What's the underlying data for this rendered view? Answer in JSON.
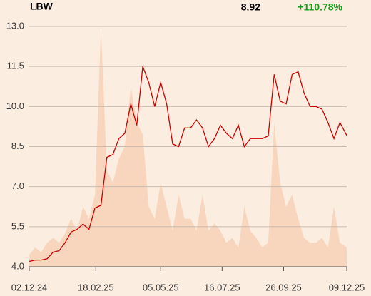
{
  "header": {
    "symbol": "LBW",
    "price": "8.92",
    "change": "+110.78%"
  },
  "chart_data": {
    "type": "line",
    "x": [
      "02.12.24",
      "09.12.24",
      "16.12.24",
      "23.12.24",
      "30.12.24",
      "06.01.25",
      "13.01.25",
      "20.01.25",
      "27.01.25",
      "03.02.25",
      "10.02.25",
      "17.02.25",
      "24.02.25",
      "03.03.25",
      "10.03.25",
      "17.03.25",
      "24.03.25",
      "31.03.25",
      "07.04.25",
      "14.04.25",
      "21.04.25",
      "28.04.25",
      "05.05.25",
      "12.05.25",
      "19.05.25",
      "26.05.25",
      "02.06.25",
      "09.06.25",
      "16.06.25",
      "23.06.25",
      "30.06.25",
      "07.07.25",
      "14.07.25",
      "21.07.25",
      "28.07.25",
      "04.08.25",
      "11.08.25",
      "18.08.25",
      "25.08.25",
      "01.09.25",
      "08.09.25",
      "15.09.25",
      "22.09.25",
      "29.09.25",
      "06.10.25",
      "13.10.25",
      "20.10.25",
      "27.10.25",
      "03.11.25",
      "10.11.25",
      "17.11.25",
      "24.11.25",
      "01.12.25",
      "09.12.25"
    ],
    "series": [
      {
        "color": "#cc0000",
        "values": [
          4.2,
          4.25,
          4.25,
          4.3,
          4.55,
          4.6,
          4.9,
          5.3,
          5.4,
          5.6,
          5.4,
          6.2,
          6.3,
          8.1,
          8.2,
          8.8,
          9.0,
          10.1,
          9.3,
          11.5,
          10.9,
          10.0,
          10.9,
          10.1,
          8.6,
          8.5,
          9.2,
          9.2,
          9.5,
          9.2,
          8.5,
          8.8,
          9.3,
          9.0,
          8.8,
          9.3,
          8.5,
          8.8,
          8.8,
          8.8,
          8.9,
          11.2,
          10.2,
          10.1,
          11.2,
          11.3,
          10.5,
          10.0,
          10.0,
          9.9,
          9.4,
          8.8,
          9.4,
          8.92
        ]
      }
    ],
    "volume": {
      "color": "#f7d6bd",
      "values": [
        5,
        8,
        6,
        10,
        12,
        10,
        14,
        20,
        15,
        25,
        20,
        30,
        100,
        40,
        35,
        45,
        50,
        75,
        60,
        55,
        25,
        20,
        35,
        25,
        15,
        30,
        20,
        20,
        15,
        30,
        15,
        18,
        15,
        10,
        12,
        8,
        25,
        15,
        12,
        8,
        10,
        60,
        35,
        25,
        30,
        20,
        12,
        10,
        10,
        12,
        8,
        25,
        10,
        8
      ]
    },
    "xlim": [
      "02.12.24",
      "09.12.25"
    ],
    "xticks": [
      "02.12.24",
      "18.02.25",
      "05.05.25",
      "16.07.25",
      "26.09.25",
      "09.12.25"
    ],
    "ylim": [
      4,
      13
    ],
    "yticks": [
      {
        "value": 4,
        "label": "4.0"
      },
      {
        "value": 5.5,
        "label": "5.5"
      },
      {
        "value": 7,
        "label": "7.0"
      },
      {
        "value": 8.5,
        "label": "8.5"
      },
      {
        "value": 10,
        "label": "10.0"
      },
      {
        "value": 11.5,
        "label": "11.5"
      },
      {
        "value": 13,
        "label": "13.0"
      }
    ],
    "y2lim": [
      0,
      100
    ],
    "grid": true,
    "positive_color": "#1a9a1a"
  }
}
